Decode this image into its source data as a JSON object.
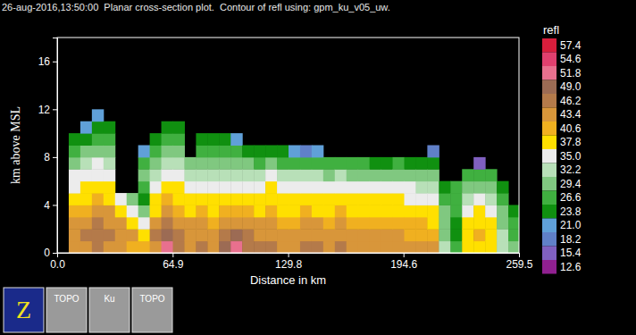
{
  "chart_data": {
    "type": "heatmap",
    "title": "26-aug-2016,13:50:00  Planar cross-section plot.  Contour of refl using: gpm_ku_v05_uw.",
    "xlabel": "Distance in km",
    "ylabel": "km above MSL",
    "colorbar_title": "refl",
    "xlim": [
      0,
      259.5
    ],
    "xticks": [
      {
        "value": 0,
        "label": "0.0"
      },
      64.9,
      129.8,
      194.6,
      259.5
    ],
    "ylim": [
      0,
      18
    ],
    "yticks": [
      0,
      4,
      8,
      12,
      16
    ],
    "zticks": [
      57.4,
      54.6,
      51.8,
      {
        "value": 49,
        "label": "49.0"
      },
      46.2,
      43.4,
      40.6,
      37.8,
      {
        "value": 35,
        "label": "35.0"
      },
      32.2,
      29.4,
      26.6,
      23.8,
      {
        "value": 21,
        "label": "21.0"
      },
      18.2,
      15.4,
      12.6
    ],
    "colors": [
      "#d81e3c",
      "#e0406e",
      "#e8708e",
      "#9c6b54",
      "#b47a4a",
      "#d8963a",
      "#f0b020",
      "#ffe000",
      "#ececec",
      "#b8e0b8",
      "#80c880",
      "#40b040",
      "#109010",
      "#60a0d8",
      "#6080c8",
      "#8060c0",
      "#902090"
    ],
    "x_edges": [
      0,
      6.5,
      13,
      19.5,
      26,
      32.5,
      39,
      45.5,
      52,
      58.5,
      65,
      71.5,
      78,
      84.5,
      91,
      97.5,
      104,
      110.5,
      117,
      123.5,
      130,
      136.5,
      143,
      149.5,
      156,
      162.5,
      169,
      175.5,
      182,
      188.5,
      195,
      201.5,
      208,
      214.5,
      221,
      227.5,
      234,
      240.5,
      247,
      253.5,
      260
    ],
    "y_edges": [
      0,
      1,
      2,
      3,
      4,
      5,
      6,
      7,
      8,
      9,
      10,
      11,
      12
    ],
    "cells": [
      [
        null,
        null,
        null,
        null,
        null,
        null,
        null,
        null,
        null,
        null,
        null,
        null
      ],
      [
        44,
        45,
        44,
        41,
        39,
        37,
        35,
        32,
        29,
        25,
        null,
        null
      ],
      [
        46,
        47,
        46,
        43,
        40,
        38,
        36,
        33,
        30,
        26,
        22,
        null
      ],
      [
        47,
        48,
        47,
        45,
        41,
        39,
        37,
        35,
        32,
        29,
        26,
        22
      ],
      [
        46,
        47,
        46,
        44,
        40,
        38,
        36,
        34,
        31,
        28,
        25,
        null
      ],
      [
        45,
        46,
        44,
        40,
        36,
        null,
        null,
        null,
        null,
        null,
        null,
        null
      ],
      [
        42,
        44,
        40,
        36,
        32,
        null,
        null,
        null,
        null,
        null,
        null,
        null
      ],
      [
        42,
        40,
        36,
        30,
        26,
        29,
        31,
        27,
        23,
        null,
        null,
        null
      ],
      [
        46,
        47,
        44,
        40,
        38,
        36,
        34,
        31,
        28,
        25,
        null,
        null
      ],
      [
        53,
        50,
        48,
        45,
        41,
        38,
        36,
        34,
        31,
        28,
        25,
        null
      ],
      [
        48,
        47,
        45,
        42,
        39,
        38,
        35,
        33,
        30,
        27,
        24,
        null
      ],
      [
        46,
        46,
        44,
        40,
        38,
        36,
        34,
        31,
        null,
        null,
        null,
        null
      ],
      [
        47,
        46,
        44,
        41,
        38,
        36,
        34,
        31,
        28,
        25,
        null,
        null
      ],
      [
        46,
        46,
        43,
        40,
        38,
        36,
        33,
        30,
        27,
        24,
        null,
        null
      ],
      [
        50,
        48,
        45,
        41,
        39,
        36,
        34,
        31,
        28,
        25,
        null,
        null
      ],
      [
        53,
        49,
        46,
        42,
        39,
        36,
        34,
        31,
        27,
        23,
        null,
        null
      ],
      [
        48,
        47,
        45,
        41,
        38,
        36,
        33,
        30,
        26,
        null,
        null,
        null
      ],
      [
        47,
        46,
        44,
        40,
        38,
        36,
        33,
        29,
        25,
        null,
        null,
        null
      ],
      [
        47,
        46,
        44,
        41,
        39,
        38,
        35,
        30,
        25,
        null,
        null,
        null
      ],
      [
        46,
        46,
        43,
        40,
        38,
        36,
        33,
        29,
        24,
        null,
        null,
        null
      ],
      [
        46,
        45,
        43,
        40,
        38,
        36,
        33,
        28,
        21,
        null,
        null,
        null
      ],
      [
        47,
        46,
        44,
        41,
        39,
        36,
        33,
        28,
        20,
        null,
        null,
        null
      ],
      [
        47,
        46,
        44,
        40,
        38,
        36,
        33,
        28,
        22,
        null,
        null,
        null
      ],
      [
        46,
        45,
        43,
        40,
        38,
        36,
        32,
        27,
        null,
        null,
        null,
        null
      ],
      [
        47,
        46,
        44,
        41,
        39,
        37,
        33,
        28,
        null,
        null,
        null,
        null
      ],
      [
        46,
        45,
        43,
        40,
        38,
        36,
        32,
        27,
        null,
        null,
        null,
        null
      ],
      [
        45,
        45,
        42,
        39,
        38,
        36,
        32,
        27,
        null,
        null,
        null,
        null
      ],
      [
        46,
        45,
        43,
        40,
        38,
        36,
        32,
        26,
        null,
        null,
        null,
        null
      ],
      [
        45,
        44,
        42,
        39,
        38,
        35,
        31,
        26,
        null,
        null,
        null,
        null
      ],
      [
        46,
        45,
        43,
        40,
        39,
        37,
        32,
        27,
        null,
        null,
        null,
        null
      ],
      [
        44,
        43,
        41,
        39,
        37,
        35,
        31,
        26,
        null,
        null,
        null,
        null
      ],
      [
        44,
        43,
        41,
        38,
        36,
        34,
        30,
        25,
        null,
        null,
        null,
        null
      ],
      [
        44,
        43,
        40,
        38,
        36,
        34,
        30,
        26,
        20,
        null,
        null,
        null
      ],
      [
        33,
        32,
        31,
        30,
        28,
        26,
        null,
        null,
        null,
        null,
        null,
        null
      ],
      [
        27,
        26,
        26,
        27,
        28,
        27,
        null,
        null,
        null,
        null,
        null,
        null
      ],
      [
        38,
        40,
        39,
        37,
        34,
        31,
        28,
        null,
        null,
        null,
        null,
        null
      ],
      [
        40,
        41,
        40,
        38,
        35,
        32,
        27,
        18,
        null,
        null,
        null,
        null
      ],
      [
        39,
        40,
        39,
        37,
        34,
        31,
        27,
        null,
        null,
        null,
        null,
        null
      ],
      [
        34,
        33,
        32,
        30,
        27,
        24,
        null,
        null,
        null,
        null,
        null,
        null
      ],
      [
        30,
        29,
        27,
        25,
        null,
        null,
        null,
        null,
        null,
        null,
        null,
        null
      ]
    ]
  },
  "toolbar": [
    "Z",
    "TOPO",
    "Ku",
    "TOPO"
  ]
}
